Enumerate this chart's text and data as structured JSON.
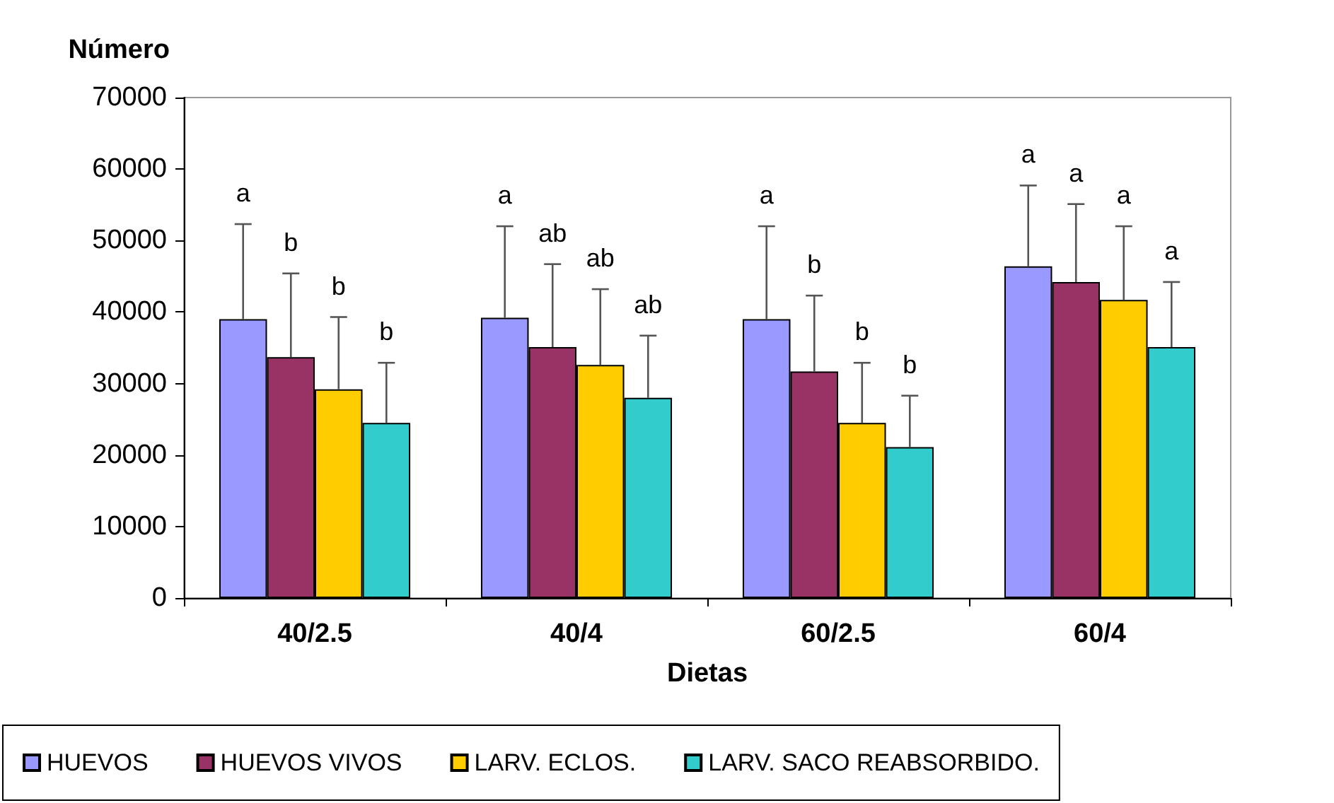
{
  "chart_data": {
    "type": "bar",
    "ylabel": "Número",
    "xlabel": "Dietas",
    "categories": [
      "40/2.5",
      "40/4",
      "60/2.5",
      "60/4"
    ],
    "series": [
      {
        "name": "HUEVOS",
        "color": "#9999ff",
        "values": [
          39000,
          39200,
          39000,
          46400
        ],
        "errors": [
          [
            39000,
            52300
          ],
          [
            39200,
            52000
          ],
          [
            39000,
            52000
          ],
          [
            46400,
            57700
          ]
        ]
      },
      {
        "name": "HUEVOS VIVOS",
        "color": "#993366",
        "values": [
          33700,
          35100,
          31700,
          44200
        ],
        "errors": [
          [
            33700,
            45400
          ],
          [
            35100,
            46700
          ],
          [
            31700,
            42300
          ],
          [
            44200,
            55100
          ]
        ]
      },
      {
        "name": "LARV. ECLOS.",
        "color": "#ffcc00",
        "values": [
          29200,
          32600,
          24500,
          41700
        ],
        "errors": [
          [
            29200,
            39300
          ],
          [
            32600,
            43200
          ],
          [
            24500,
            32900
          ],
          [
            41700,
            52000
          ]
        ]
      },
      {
        "name": "LARV. SACO REABSORBIDO.",
        "color": "#33cccc",
        "values": [
          24500,
          28000,
          21100,
          35100
        ],
        "errors": [
          [
            24500,
            32900
          ],
          [
            28000,
            36700
          ],
          [
            21100,
            28300
          ],
          [
            35100,
            44200
          ]
        ]
      }
    ],
    "annotations": [
      "a",
      "b",
      "b",
      "b",
      "a",
      "ab",
      "ab",
      "ab",
      "a",
      "b",
      "b",
      "b",
      "a",
      "a",
      "a",
      "a"
    ],
    "ylim": [
      0,
      70000
    ],
    "yticks": [
      0,
      10000,
      20000,
      30000,
      40000,
      50000,
      60000,
      70000
    ],
    "grid": false,
    "legend": "bottom"
  }
}
